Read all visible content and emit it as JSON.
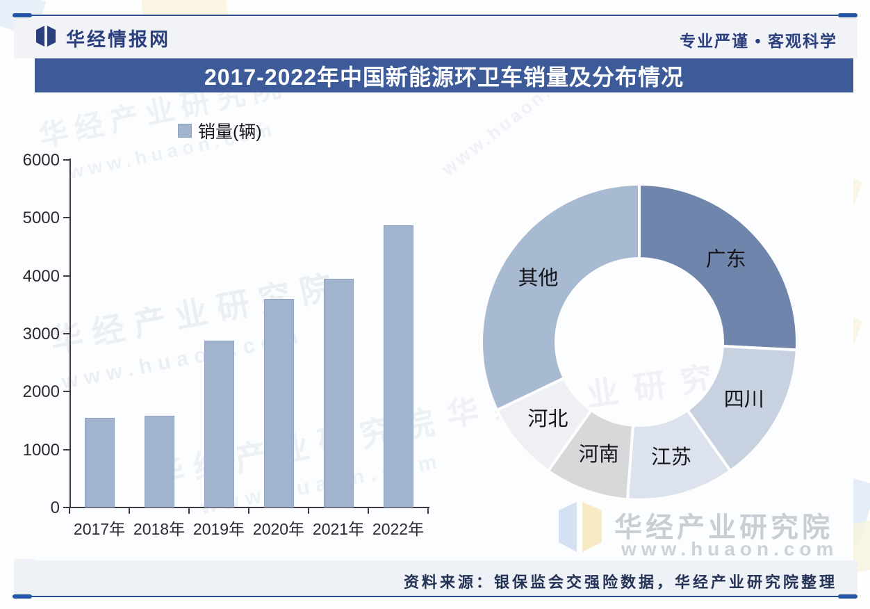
{
  "header": {
    "brand": "华经情报网",
    "slogan": "专业严谨 • 客观科学",
    "logo_icon": "open-book-logo"
  },
  "title": "2017-2022年中国新能源环卫车销量及分布情况",
  "legend": {
    "label": "销量(辆)",
    "swatch_color": "#a2b3cd"
  },
  "source": "资料来源：银保监会交强险数据，华经产业研究院整理",
  "watermark": {
    "name": "华经产业研究院",
    "url": "www.huaon.com"
  },
  "colors": {
    "banner": "#3d5b99",
    "brand_text": "#2b3f7e",
    "rule": "#2b4e8c",
    "bar": "#a2b3cd",
    "axis": "#3e3944",
    "donut_gap": "#fdfdfe"
  },
  "chart_data": [
    {
      "type": "bar",
      "series_name": "销量(辆)",
      "categories": [
        "2017年",
        "2018年",
        "2019年",
        "2020年",
        "2021年",
        "2022年"
      ],
      "values": [
        1550,
        1580,
        2880,
        3600,
        3950,
        4870
      ],
      "ylabel": "",
      "xlabel": "",
      "ylim": [
        0,
        6000
      ],
      "ytick_step": 1000,
      "grid": false,
      "bar_color": "#a2b3cd"
    },
    {
      "type": "pie",
      "donut": true,
      "labels": [
        "广东",
        "四川",
        "江苏",
        "河南",
        "河北",
        "其他"
      ],
      "values": [
        25.8,
        14.4,
        11.0,
        8.6,
        8.1,
        32.1
      ],
      "unit": "%",
      "colors": [
        "#6f85ab",
        "#c7d1e0",
        "#dde3ee",
        "#d6d8da",
        "#eef0f4",
        "#a8b9d2"
      ],
      "start_angle": 0,
      "legend_position": "labels-inside-slices"
    }
  ]
}
